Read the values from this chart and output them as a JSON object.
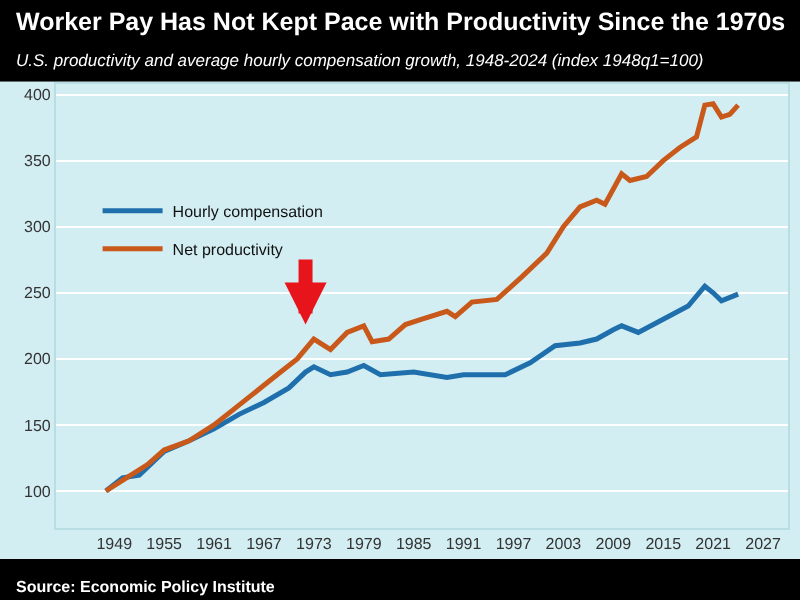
{
  "chart_data": {
    "type": "line",
    "title": "Worker Pay Has Not Kept Pace with Productivity Since the 1970s",
    "subtitle": "U.S. productivity and average hourly compensation growth, 1948-2024 (index 1948q1=100)",
    "series": [
      {
        "name": "Hourly compensation",
        "color": "#1f6fad",
        "x": [
          1948,
          1950,
          1952,
          1955,
          1958,
          1961,
          1964,
          1967,
          1970,
          1972,
          1973,
          1975,
          1977,
          1979,
          1981,
          1985,
          1989,
          1991,
          1996,
          1999,
          2002,
          2005,
          2007,
          2009,
          2010,
          2012,
          2015,
          2018,
          2020,
          2021,
          2022,
          2024
        ],
        "values": [
          100,
          110,
          112,
          130,
          138,
          147,
          158,
          167,
          178,
          190,
          194,
          188,
          190,
          195,
          188,
          190,
          186,
          188,
          188,
          197,
          210,
          212,
          215,
          222,
          225,
          220,
          230,
          240,
          255,
          250,
          244,
          249
        ]
      },
      {
        "name": "Net productivity",
        "color": "#c8591a",
        "x": [
          1948,
          1950,
          1953,
          1955,
          1958,
          1961,
          1964,
          1967,
          1969,
          1971,
          1973,
          1975,
          1977,
          1979,
          1980,
          1982,
          1984,
          1986,
          1989,
          1990,
          1992,
          1995,
          1998,
          2001,
          2003,
          2005,
          2007,
          2008,
          2010,
          2011,
          2013,
          2015,
          2017,
          2019,
          2020,
          2021,
          2022,
          2023,
          2024
        ],
        "values": [
          100,
          108,
          120,
          131,
          138,
          150,
          165,
          180,
          190,
          200,
          215,
          207,
          220,
          225,
          213,
          215,
          226,
          230,
          236,
          232,
          243,
          245,
          262,
          280,
          300,
          315,
          320,
          317,
          340,
          335,
          338,
          350,
          360,
          368,
          392,
          393,
          383,
          385,
          392
        ]
      }
    ],
    "xlim": [
      1942,
      2030
    ],
    "xticks": [
      1949,
      1955,
      1961,
      1967,
      1973,
      1979,
      1985,
      1991,
      1997,
      2003,
      2009,
      2015,
      2021,
      2027
    ],
    "ylim": [
      72,
      408
    ],
    "yticks": [
      100,
      150,
      200,
      250,
      300,
      350,
      400
    ],
    "grid": "y",
    "legend": "top left",
    "marker": "none",
    "line_style": "solid",
    "annotations": [
      "Source: Economic Policy Institute"
    ]
  }
}
